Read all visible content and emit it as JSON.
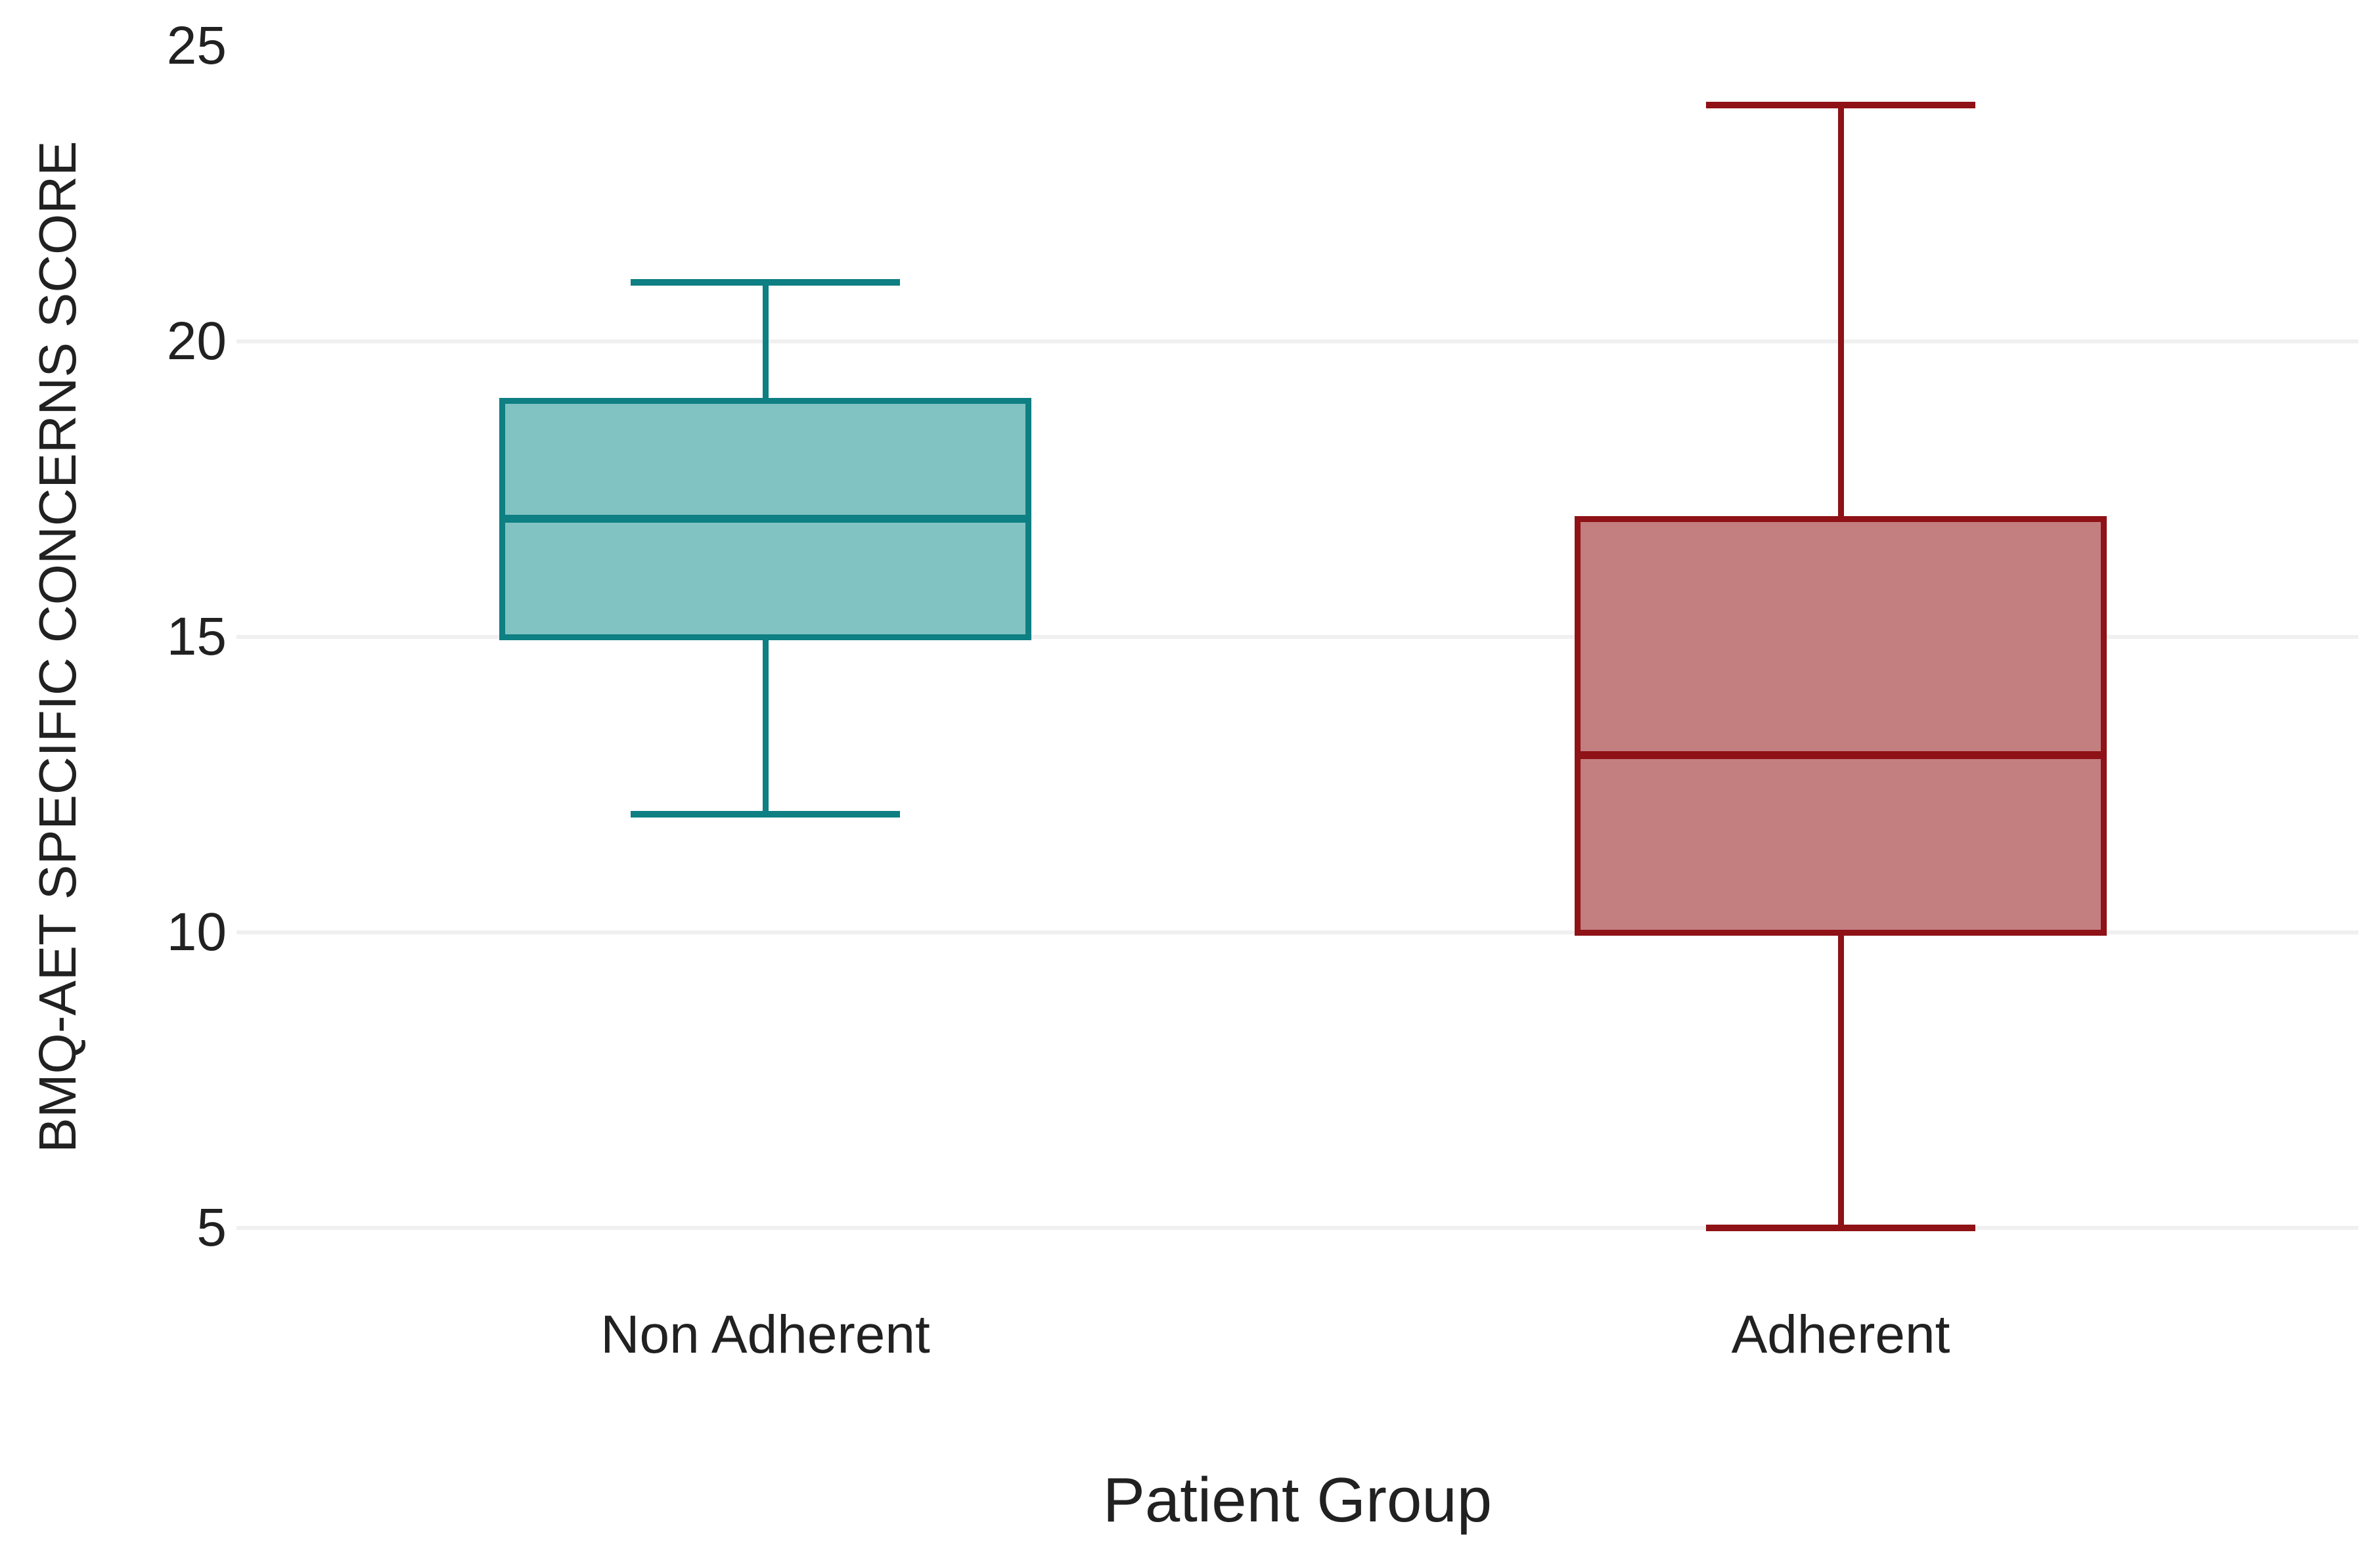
{
  "chart_data": {
    "type": "boxplot",
    "title": "",
    "xlabel": "Patient Group",
    "ylabel": "BMQ-AET SPECIFIC CONCERNS SCORE",
    "categories": [
      "Non Adherent",
      "Adherent"
    ],
    "yticks": [
      25,
      20,
      15,
      10,
      5
    ],
    "ylim": [
      3.8,
      25.9
    ],
    "grid": "horizontal",
    "legend_position": "none",
    "series": [
      {
        "name": "Non Adherent",
        "whisker_low": 12,
        "q1": 15,
        "median": 17,
        "q3": 19,
        "whisker_high": 21,
        "fill_color": "#81c3c2",
        "line_color": "#0e7f83"
      },
      {
        "name": "Adherent",
        "whisker_low": 5,
        "q1": 10,
        "median": 13,
        "q3": 17,
        "whisker_high": 24,
        "fill_color": "#c37e80",
        "line_color": "#8e1216"
      }
    ],
    "colors": {
      "gridline": "#f0f0f0",
      "text": "#212121",
      "background": "#ffffff"
    }
  }
}
